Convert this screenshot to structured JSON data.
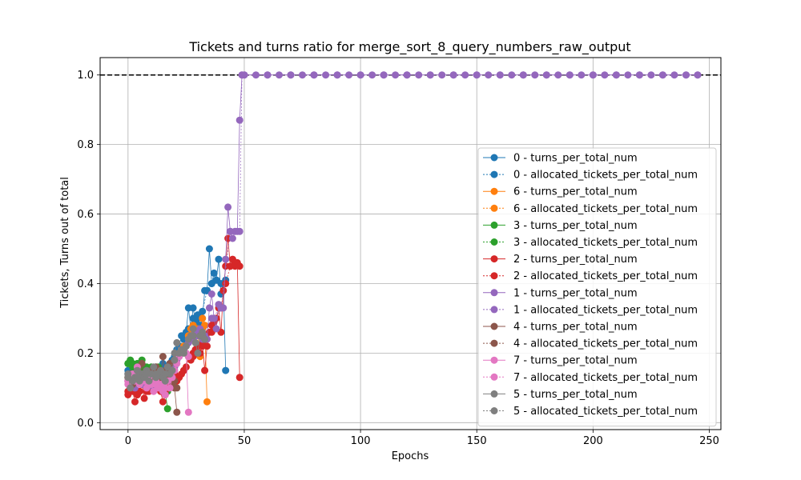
{
  "chart_data": {
    "type": "line",
    "title": "Tickets and turns ratio for merge_sort_8_query_numbers_raw_output",
    "xlabel": "Epochs",
    "ylabel": "Tickets, Turns out of total",
    "xlim": [
      -12,
      255
    ],
    "ylim": [
      -0.02,
      1.05
    ],
    "xticks": [
      0,
      50,
      100,
      150,
      200,
      250
    ],
    "yticks": [
      0.0,
      0.2,
      0.4,
      0.6,
      0.8,
      1.0
    ],
    "xtick_labels": [
      "0",
      "50",
      "100",
      "150",
      "200",
      "250"
    ],
    "ytick_labels": [
      "0.0",
      "0.2",
      "0.4",
      "0.6",
      "0.8",
      "1.0"
    ],
    "grid": true,
    "legend_position": "lower-right",
    "reference_line": {
      "y": 1.0,
      "style": "dashed",
      "color": "#000000"
    },
    "colors": {
      "0": "#1f77b4",
      "6": "#ff7f0e",
      "3": "#2ca02c",
      "2": "#d62728",
      "1": "#9467bd",
      "4": "#8c564b",
      "7": "#e377c2",
      "5": "#7f7f7f"
    },
    "series": [
      {
        "name": "0 - turns_per_total_num",
        "agent": "0",
        "style": "solid",
        "x": [
          0,
          1,
          2,
          3,
          4,
          5,
          6,
          7,
          8,
          9,
          10,
          11,
          12,
          13,
          14,
          15,
          16,
          17,
          18,
          19,
          20,
          21,
          22,
          23,
          24,
          25,
          26,
          27,
          28,
          29,
          30,
          31,
          32,
          33,
          34,
          35,
          36,
          37,
          38,
          39,
          40,
          41,
          42
        ],
        "y": [
          0.15,
          0.12,
          0.14,
          0.13,
          0.15,
          0.12,
          0.14,
          0.16,
          0.13,
          0.15,
          0.14,
          0.13,
          0.16,
          0.15,
          0.14,
          0.17,
          0.15,
          0.16,
          0.17,
          0.18,
          0.19,
          0.21,
          0.22,
          0.25,
          0.24,
          0.26,
          0.33,
          0.27,
          0.33,
          0.29,
          0.31,
          0.28,
          0.3,
          0.38,
          0.38,
          0.5,
          0.4,
          0.43,
          0.41,
          0.47,
          0.37,
          0.4,
          0.15
        ]
      },
      {
        "name": "0 - allocated_tickets_per_total_num",
        "agent": "0",
        "style": "dotted",
        "x": [
          0,
          2,
          4,
          6,
          8,
          10,
          12,
          14,
          16,
          18,
          20,
          22,
          24,
          26,
          28,
          30,
          32,
          34,
          36,
          38,
          40,
          42
        ],
        "y": [
          0.14,
          0.13,
          0.14,
          0.13,
          0.14,
          0.14,
          0.15,
          0.15,
          0.16,
          0.17,
          0.19,
          0.22,
          0.24,
          0.27,
          0.3,
          0.3,
          0.32,
          0.38,
          0.4,
          0.41,
          0.4,
          0.41
        ]
      },
      {
        "name": "6 - turns_per_total_num",
        "agent": "6",
        "style": "solid",
        "x": [
          0,
          2,
          4,
          6,
          8,
          10,
          12,
          14,
          16,
          18,
          20,
          22,
          24,
          26,
          27,
          28,
          29,
          30,
          31,
          32,
          33,
          34
        ],
        "y": [
          0.13,
          0.14,
          0.12,
          0.13,
          0.14,
          0.15,
          0.13,
          0.14,
          0.15,
          0.16,
          0.18,
          0.2,
          0.22,
          0.25,
          0.27,
          0.28,
          0.27,
          0.26,
          0.19,
          0.3,
          0.28,
          0.06
        ]
      },
      {
        "name": "6 - allocated_tickets_per_total_num",
        "agent": "6",
        "style": "dotted",
        "x": [
          0,
          4,
          8,
          12,
          16,
          20,
          24,
          26,
          28,
          30,
          32,
          34
        ],
        "y": [
          0.13,
          0.13,
          0.14,
          0.14,
          0.15,
          0.18,
          0.22,
          0.25,
          0.27,
          0.27,
          0.27,
          0.24
        ]
      },
      {
        "name": "3 - turns_per_total_num",
        "agent": "3",
        "style": "solid",
        "x": [
          0,
          1,
          2,
          3,
          4,
          5,
          6,
          7,
          8,
          9,
          10,
          11,
          12,
          13,
          14,
          15,
          16,
          17
        ],
        "y": [
          0.17,
          0.18,
          0.16,
          0.15,
          0.17,
          0.16,
          0.18,
          0.15,
          0.16,
          0.14,
          0.16,
          0.15,
          0.14,
          0.16,
          0.13,
          0.12,
          0.09,
          0.04
        ]
      },
      {
        "name": "3 - allocated_tickets_per_total_num",
        "agent": "3",
        "style": "dotted",
        "x": [
          0,
          2,
          4,
          6,
          8,
          10,
          12,
          14,
          16,
          17
        ],
        "y": [
          0.17,
          0.17,
          0.16,
          0.16,
          0.15,
          0.15,
          0.14,
          0.13,
          0.11,
          0.09
        ]
      },
      {
        "name": "2 - turns_per_total_num",
        "agent": "2",
        "style": "solid",
        "x": [
          0,
          1,
          2,
          3,
          4,
          5,
          6,
          7,
          8,
          9,
          10,
          11,
          12,
          13,
          14,
          15,
          16,
          17,
          18,
          19,
          20,
          21,
          22,
          23,
          24,
          25,
          26,
          27,
          28,
          29,
          30,
          31,
          32,
          33,
          34,
          35,
          36,
          37,
          38,
          39,
          40,
          41,
          42,
          43,
          44,
          45,
          46,
          47,
          48
        ],
        "y": [
          0.08,
          0.1,
          0.09,
          0.06,
          0.08,
          0.09,
          0.11,
          0.07,
          0.1,
          0.09,
          0.12,
          0.1,
          0.11,
          0.1,
          0.09,
          0.06,
          0.08,
          0.1,
          0.12,
          0.11,
          0.14,
          0.12,
          0.13,
          0.14,
          0.15,
          0.16,
          0.19,
          0.18,
          0.2,
          0.21,
          0.22,
          0.2,
          0.23,
          0.15,
          0.22,
          0.26,
          0.28,
          0.29,
          0.3,
          0.33,
          0.26,
          0.38,
          0.45,
          0.53,
          0.45,
          0.47,
          0.45,
          0.46,
          0.13
        ]
      },
      {
        "name": "2 - allocated_tickets_per_total_num",
        "agent": "2",
        "style": "dotted",
        "x": [
          0,
          4,
          8,
          12,
          16,
          20,
          24,
          28,
          32,
          36,
          40,
          42,
          44,
          46,
          48
        ],
        "y": [
          0.09,
          0.08,
          0.09,
          0.1,
          0.09,
          0.12,
          0.15,
          0.19,
          0.22,
          0.26,
          0.33,
          0.4,
          0.45,
          0.46,
          0.45
        ]
      },
      {
        "name": "1 - turns_per_total_num",
        "agent": "1",
        "style": "solid",
        "x": [
          0,
          1,
          2,
          3,
          4,
          5,
          6,
          7,
          8,
          9,
          10,
          11,
          12,
          13,
          14,
          15,
          16,
          17,
          18,
          19,
          20,
          21,
          22,
          23,
          24,
          25,
          26,
          27,
          28,
          29,
          30,
          31,
          32,
          33,
          34,
          35,
          36,
          37,
          38,
          39,
          40,
          41,
          42,
          43,
          44,
          45,
          46,
          47,
          48,
          49,
          50,
          55,
          60,
          65,
          70,
          75,
          80,
          85,
          90,
          95,
          100,
          105,
          110,
          115,
          120,
          125,
          130,
          135,
          140,
          145,
          150,
          155,
          160,
          165,
          170,
          175,
          180,
          185,
          190,
          195,
          200,
          205,
          210,
          215,
          220,
          225,
          230,
          235,
          240,
          245
        ],
        "y": [
          0.13,
          0.11,
          0.12,
          0.1,
          0.13,
          0.12,
          0.11,
          0.12,
          0.13,
          0.11,
          0.12,
          0.1,
          0.11,
          0.12,
          0.1,
          0.11,
          0.13,
          0.12,
          0.14,
          0.15,
          0.16,
          0.18,
          0.19,
          0.2,
          0.21,
          0.22,
          0.23,
          0.24,
          0.24,
          0.26,
          0.25,
          0.27,
          0.24,
          0.25,
          0.24,
          0.33,
          0.37,
          0.3,
          0.27,
          0.34,
          0.33,
          0.33,
          0.47,
          0.62,
          0.55,
          0.53,
          0.55,
          0.55,
          0.87,
          1.0,
          1.0,
          1.0,
          1.0,
          1.0,
          1.0,
          1.0,
          1.0,
          1.0,
          1.0,
          1.0,
          1.0,
          1.0,
          1.0,
          1.0,
          1.0,
          1.0,
          1.0,
          1.0,
          1.0,
          1.0,
          1.0,
          1.0,
          1.0,
          1.0,
          1.0,
          1.0,
          1.0,
          1.0,
          1.0,
          1.0,
          1.0,
          1.0,
          1.0,
          1.0,
          1.0,
          1.0,
          1.0,
          1.0,
          1.0,
          1.0
        ]
      },
      {
        "name": "1 - allocated_tickets_per_total_num",
        "agent": "1",
        "style": "dotted",
        "x": [
          0,
          4,
          8,
          12,
          16,
          20,
          24,
          28,
          32,
          36,
          40,
          44,
          48,
          49,
          50,
          60,
          70,
          80,
          90,
          100,
          110,
          120,
          130,
          140,
          150,
          160,
          170,
          180,
          190,
          200,
          210,
          220,
          230,
          240,
          245
        ],
        "y": [
          0.12,
          0.12,
          0.12,
          0.11,
          0.12,
          0.16,
          0.21,
          0.24,
          0.25,
          0.3,
          0.33,
          0.55,
          0.55,
          1.0,
          1.0,
          1.0,
          1.0,
          1.0,
          1.0,
          1.0,
          1.0,
          1.0,
          1.0,
          1.0,
          1.0,
          1.0,
          1.0,
          1.0,
          1.0,
          1.0,
          1.0,
          1.0,
          1.0,
          1.0,
          1.0
        ]
      },
      {
        "name": "4 - turns_per_total_num",
        "agent": "4",
        "style": "solid",
        "x": [
          0,
          1,
          2,
          3,
          4,
          5,
          6,
          7,
          8,
          9,
          10,
          11,
          12,
          13,
          14,
          15,
          16,
          17,
          18,
          19,
          20,
          21
        ],
        "y": [
          0.12,
          0.14,
          0.11,
          0.13,
          0.15,
          0.12,
          0.17,
          0.13,
          0.14,
          0.12,
          0.15,
          0.13,
          0.16,
          0.14,
          0.12,
          0.19,
          0.15,
          0.13,
          0.17,
          0.11,
          0.1,
          0.03
        ]
      },
      {
        "name": "4 - allocated_tickets_per_total_num",
        "agent": "4",
        "style": "dotted",
        "x": [
          0,
          4,
          8,
          12,
          16,
          20,
          21
        ],
        "y": [
          0.13,
          0.13,
          0.13,
          0.14,
          0.14,
          0.12,
          0.1
        ]
      },
      {
        "name": "7 - turns_per_total_num",
        "agent": "7",
        "style": "solid",
        "x": [
          0,
          1,
          2,
          3,
          4,
          5,
          6,
          7,
          8,
          9,
          10,
          11,
          12,
          13,
          14,
          15,
          16,
          17,
          18,
          19,
          20,
          21,
          22,
          23,
          24,
          25,
          26
        ],
        "y": [
          0.11,
          0.12,
          0.14,
          0.12,
          0.16,
          0.11,
          0.13,
          0.12,
          0.1,
          0.13,
          0.11,
          0.09,
          0.12,
          0.1,
          0.11,
          0.09,
          0.08,
          0.12,
          0.1,
          0.13,
          0.15,
          0.17,
          0.19,
          0.21,
          0.21,
          0.2,
          0.03
        ]
      },
      {
        "name": "7 - allocated_tickets_per_total_num",
        "agent": "7",
        "style": "dotted",
        "x": [
          0,
          4,
          8,
          12,
          16,
          20,
          24,
          26
        ],
        "y": [
          0.12,
          0.13,
          0.12,
          0.11,
          0.1,
          0.15,
          0.21,
          0.19
        ]
      },
      {
        "name": "5 - turns_per_total_num",
        "agent": "5",
        "style": "solid",
        "x": [
          0,
          1,
          2,
          3,
          4,
          5,
          6,
          7,
          8,
          9,
          10,
          11,
          12,
          13,
          14,
          15,
          16,
          17,
          18,
          19,
          20,
          21,
          22,
          23,
          24,
          25,
          26,
          27,
          28,
          29,
          30,
          31,
          32,
          33
        ],
        "y": [
          0.14,
          0.1,
          0.12,
          0.13,
          0.15,
          0.12,
          0.14,
          0.13,
          0.15,
          0.12,
          0.14,
          0.16,
          0.13,
          0.14,
          0.15,
          0.13,
          0.12,
          0.16,
          0.14,
          0.15,
          0.2,
          0.23,
          0.2,
          0.21,
          0.2,
          0.22,
          0.24,
          0.25,
          0.27,
          0.23,
          0.2,
          0.25,
          0.26,
          0.24
        ]
      },
      {
        "name": "5 - allocated_tickets_per_total_num",
        "agent": "5",
        "style": "dotted",
        "x": [
          0,
          4,
          8,
          12,
          16,
          20,
          24,
          28,
          32,
          33
        ],
        "y": [
          0.13,
          0.13,
          0.14,
          0.14,
          0.14,
          0.18,
          0.21,
          0.25,
          0.25,
          0.24
        ]
      }
    ]
  }
}
